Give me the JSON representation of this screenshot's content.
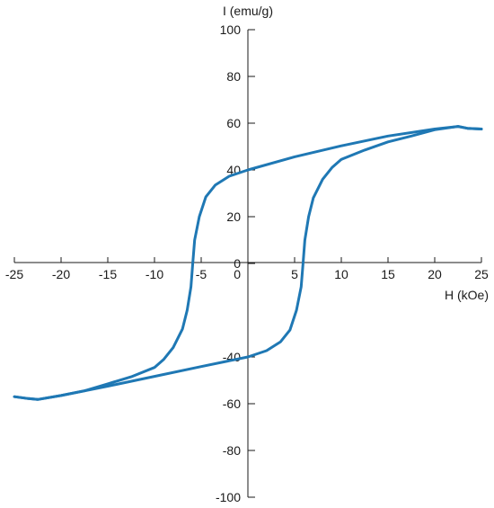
{
  "chart_data": {
    "type": "line",
    "title": "",
    "xlabel": "H (kOe)",
    "ylabel": "I (emu/g)",
    "xlim": [
      -25,
      25
    ],
    "ylim": [
      -100,
      100
    ],
    "x_ticks": [
      "-25",
      "-20",
      "-15",
      "-10",
      "-5",
      "0",
      "5",
      "10",
      "15",
      "20",
      "25"
    ],
    "y_ticks": [
      "100",
      "80",
      "60",
      "40",
      "20",
      "0",
      "-40",
      "-60",
      "-80",
      "-100"
    ],
    "grid": false,
    "legend": "none",
    "color": "#1f78b4",
    "series": [
      {
        "name": "",
        "segment": "descending",
        "points": [
          [
            25,
            57.5
          ],
          [
            23.5,
            57.8
          ],
          [
            22.5,
            58.6
          ],
          [
            20,
            57.5
          ],
          [
            15,
            54.5
          ],
          [
            10,
            50.3
          ],
          [
            5,
            45.6
          ],
          [
            0,
            40
          ],
          [
            -2,
            37.3
          ],
          [
            -3.5,
            33.5
          ],
          [
            -4.5,
            28.5
          ],
          [
            -5.2,
            20
          ],
          [
            -5.7,
            10
          ],
          [
            -5.9,
            0
          ],
          [
            -6.1,
            -10
          ],
          [
            -6.5,
            -20
          ],
          [
            -7,
            -28
          ],
          [
            -8,
            -36
          ],
          [
            -9,
            -41
          ],
          [
            -10,
            -44.5
          ],
          [
            -12.5,
            -48.5
          ],
          [
            -15,
            -51.5
          ],
          [
            -17.5,
            -54.5
          ],
          [
            -20,
            -56.5
          ],
          [
            -22.5,
            -58.2
          ],
          [
            -23.5,
            -57.8
          ],
          [
            -25,
            -57
          ]
        ]
      },
      {
        "name": "",
        "segment": "ascending",
        "points": [
          [
            -25,
            -57
          ],
          [
            -23.5,
            -57.8
          ],
          [
            -22.5,
            -58.2
          ],
          [
            -20,
            -56.5
          ],
          [
            -15,
            -52.5
          ],
          [
            -10,
            -48.3
          ],
          [
            -5,
            -44.1
          ],
          [
            0,
            -40
          ],
          [
            2,
            -37.3
          ],
          [
            3.5,
            -33.5
          ],
          [
            4.5,
            -28.5
          ],
          [
            5.2,
            -20
          ],
          [
            5.7,
            -10
          ],
          [
            5.9,
            0
          ],
          [
            6.1,
            10
          ],
          [
            6.5,
            20
          ],
          [
            7,
            28
          ],
          [
            8,
            36
          ],
          [
            9,
            41
          ],
          [
            10,
            44.5
          ],
          [
            12.5,
            48.5
          ],
          [
            15,
            52
          ],
          [
            17.5,
            54.5
          ],
          [
            20,
            57.2
          ],
          [
            22.5,
            58.6
          ],
          [
            23.5,
            57.8
          ],
          [
            25,
            57.5
          ]
        ]
      }
    ]
  }
}
